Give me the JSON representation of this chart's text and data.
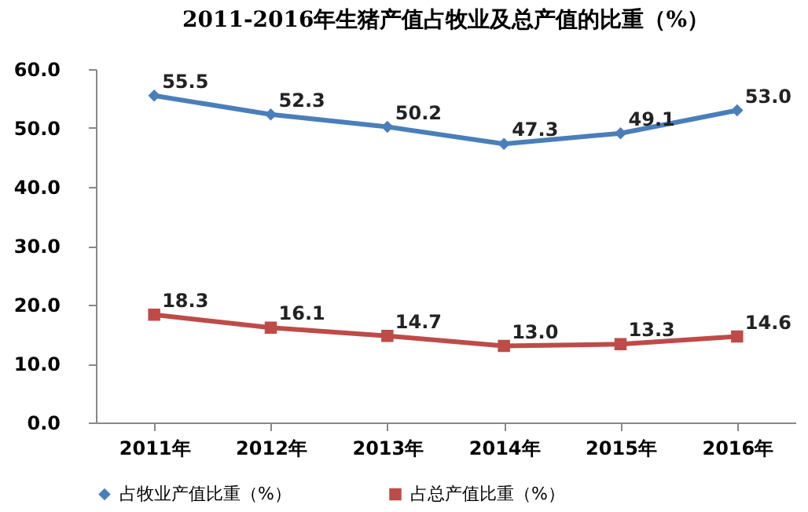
{
  "chart_data": {
    "type": "line",
    "title": "2011-2016年生猪产值占牧业及总产值的比重（%）",
    "categories": [
      "2011年",
      "2012年",
      "2013年",
      "2014年",
      "2015年",
      "2016年"
    ],
    "series": [
      {
        "name": "占牧业产值比重（%）",
        "color": "#4a7ebb",
        "marker": "diamond",
        "values": [
          55.5,
          52.3,
          50.2,
          47.3,
          49.1,
          53.0
        ],
        "value_labels": [
          "55.5",
          "52.3",
          "50.2",
          "47.3",
          "49.1",
          "53.0"
        ]
      },
      {
        "name": "占总产值比重（%）",
        "color": "#be4b48",
        "marker": "square",
        "values": [
          18.3,
          16.1,
          14.7,
          13.0,
          13.3,
          14.6
        ],
        "value_labels": [
          "18.3",
          "16.1",
          "14.7",
          "13.0",
          "13.3",
          "14.6"
        ]
      }
    ],
    "ylim": [
      0,
      60
    ],
    "yticks": [
      {
        "value": 0,
        "label": "0.0"
      },
      {
        "value": 10,
        "label": "10.0"
      },
      {
        "value": 20,
        "label": "20.0"
      },
      {
        "value": 30,
        "label": "30.0"
      },
      {
        "value": 40,
        "label": "40.0"
      },
      {
        "value": 50,
        "label": "50.0"
      },
      {
        "value": 60,
        "label": "60.0"
      }
    ],
    "grid": false,
    "legend": "bottom"
  }
}
